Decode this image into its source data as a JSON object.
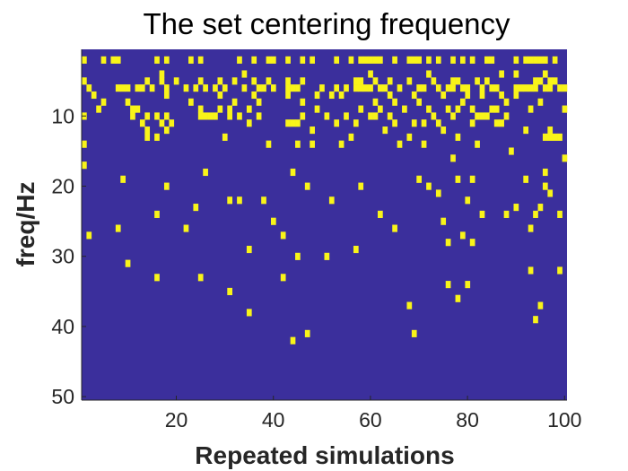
{
  "chart_data": {
    "type": "heatmap",
    "title": "The set centering frequency",
    "xlabel": "Repeated simulations",
    "ylabel": "freq/Hz",
    "x_range": [
      1,
      100
    ],
    "y_range": [
      1,
      50
    ],
    "y_direction": "reverse",
    "x_ticks": [
      20,
      40,
      60,
      80,
      100
    ],
    "y_ticks": [
      10,
      20,
      30,
      40,
      50
    ],
    "colors": {
      "background": "#3b2f9c",
      "cell": "#f9f419",
      "axis": "#262626"
    },
    "cells": [
      [
        1,
        2
      ],
      [
        5,
        2
      ],
      [
        7,
        2
      ],
      [
        8,
        2
      ],
      [
        16,
        2
      ],
      [
        18,
        2
      ],
      [
        23,
        2
      ],
      [
        25,
        2
      ],
      [
        33,
        2
      ],
      [
        36,
        2
      ],
      [
        39,
        2
      ],
      [
        40,
        2
      ],
      [
        43,
        2
      ],
      [
        46,
        2
      ],
      [
        48,
        2
      ],
      [
        53,
        2
      ],
      [
        56,
        2
      ],
      [
        58,
        2
      ],
      [
        59,
        2
      ],
      [
        60,
        2
      ],
      [
        61,
        2
      ],
      [
        62,
        2
      ],
      [
        65,
        2
      ],
      [
        68,
        2
      ],
      [
        69,
        2
      ],
      [
        70,
        2
      ],
      [
        72,
        2
      ],
      [
        74,
        2
      ],
      [
        77,
        2
      ],
      [
        79,
        2
      ],
      [
        81,
        2
      ],
      [
        84,
        2
      ],
      [
        85,
        2
      ],
      [
        90,
        2
      ],
      [
        92,
        2
      ],
      [
        93,
        2
      ],
      [
        94,
        2
      ],
      [
        95,
        2
      ],
      [
        96,
        2
      ],
      [
        98,
        2
      ],
      [
        17,
        4
      ],
      [
        34,
        4
      ],
      [
        60,
        4
      ],
      [
        72,
        4
      ],
      [
        87,
        4
      ],
      [
        90,
        4
      ],
      [
        96,
        4
      ],
      [
        1,
        5
      ],
      [
        14,
        5
      ],
      [
        17,
        5
      ],
      [
        20,
        5
      ],
      [
        25,
        5
      ],
      [
        29,
        5
      ],
      [
        32,
        5
      ],
      [
        36,
        5
      ],
      [
        39,
        5
      ],
      [
        43,
        5
      ],
      [
        46,
        5
      ],
      [
        57,
        5
      ],
      [
        58,
        5
      ],
      [
        61,
        5
      ],
      [
        64,
        5
      ],
      [
        68,
        5
      ],
      [
        73,
        5
      ],
      [
        77,
        5
      ],
      [
        78,
        5
      ],
      [
        82,
        5
      ],
      [
        84,
        5
      ],
      [
        94,
        5
      ],
      [
        95,
        5
      ],
      [
        97,
        5
      ],
      [
        98,
        5
      ],
      [
        2,
        6
      ],
      [
        8,
        6
      ],
      [
        9,
        6
      ],
      [
        10,
        6
      ],
      [
        12,
        6
      ],
      [
        13,
        6
      ],
      [
        15,
        6
      ],
      [
        18,
        6
      ],
      [
        22,
        6
      ],
      [
        24,
        6
      ],
      [
        26,
        6
      ],
      [
        28,
        6
      ],
      [
        30,
        6
      ],
      [
        34,
        6
      ],
      [
        37,
        6
      ],
      [
        38,
        6
      ],
      [
        40,
        6
      ],
      [
        43,
        6
      ],
      [
        44,
        6
      ],
      [
        45,
        6
      ],
      [
        50,
        6
      ],
      [
        53,
        6
      ],
      [
        55,
        6
      ],
      [
        57,
        6
      ],
      [
        58,
        6
      ],
      [
        59,
        6
      ],
      [
        60,
        6
      ],
      [
        62,
        6
      ],
      [
        63,
        6
      ],
      [
        66,
        6
      ],
      [
        70,
        6
      ],
      [
        71,
        6
      ],
      [
        74,
        6
      ],
      [
        76,
        6
      ],
      [
        77,
        6
      ],
      [
        79,
        6
      ],
      [
        80,
        6
      ],
      [
        83,
        6
      ],
      [
        85,
        6
      ],
      [
        86,
        6
      ],
      [
        90,
        6
      ],
      [
        91,
        6
      ],
      [
        92,
        6
      ],
      [
        93,
        6
      ],
      [
        94,
        6
      ],
      [
        96,
        6
      ],
      [
        97,
        6
      ],
      [
        99,
        6
      ],
      [
        100,
        6
      ],
      [
        3,
        7
      ],
      [
        18,
        7
      ],
      [
        29,
        7
      ],
      [
        36,
        7
      ],
      [
        43,
        7
      ],
      [
        49,
        7
      ],
      [
        52,
        7
      ],
      [
        54,
        7
      ],
      [
        64,
        7
      ],
      [
        69,
        7
      ],
      [
        75,
        7
      ],
      [
        80,
        7
      ],
      [
        83,
        7
      ],
      [
        87,
        7
      ],
      [
        90,
        7
      ],
      [
        5,
        8
      ],
      [
        10,
        8
      ],
      [
        23,
        8
      ],
      [
        32,
        8
      ],
      [
        37,
        8
      ],
      [
        46,
        8
      ],
      [
        61,
        8
      ],
      [
        65,
        8
      ],
      [
        70,
        8
      ],
      [
        79,
        8
      ],
      [
        88,
        8
      ],
      [
        95,
        8
      ],
      [
        4,
        9
      ],
      [
        11,
        9
      ],
      [
        12,
        9
      ],
      [
        25,
        9
      ],
      [
        29,
        9
      ],
      [
        31,
        9
      ],
      [
        35,
        9
      ],
      [
        49,
        9
      ],
      [
        58,
        9
      ],
      [
        62,
        9
      ],
      [
        67,
        9
      ],
      [
        72,
        9
      ],
      [
        76,
        9
      ],
      [
        78,
        9
      ],
      [
        81,
        9
      ],
      [
        85,
        9
      ],
      [
        86,
        9
      ],
      [
        93,
        9
      ],
      [
        100,
        9
      ],
      [
        1,
        10
      ],
      [
        11,
        10
      ],
      [
        14,
        10
      ],
      [
        16,
        10
      ],
      [
        18,
        10
      ],
      [
        25,
        10
      ],
      [
        26,
        10
      ],
      [
        27,
        10
      ],
      [
        28,
        10
      ],
      [
        31,
        10
      ],
      [
        33,
        10
      ],
      [
        37,
        10
      ],
      [
        46,
        10
      ],
      [
        51,
        10
      ],
      [
        55,
        10
      ],
      [
        60,
        10
      ],
      [
        61,
        10
      ],
      [
        64,
        10
      ],
      [
        73,
        10
      ],
      [
        77,
        10
      ],
      [
        82,
        10
      ],
      [
        83,
        10
      ],
      [
        84,
        10
      ],
      [
        88,
        10
      ],
      [
        13,
        11
      ],
      [
        17,
        11
      ],
      [
        19,
        11
      ],
      [
        35,
        11
      ],
      [
        43,
        11
      ],
      [
        44,
        11
      ],
      [
        45,
        11
      ],
      [
        53,
        11
      ],
      [
        57,
        11
      ],
      [
        65,
        11
      ],
      [
        69,
        11
      ],
      [
        71,
        11
      ],
      [
        74,
        11
      ],
      [
        81,
        11
      ],
      [
        86,
        11
      ],
      [
        87,
        11
      ],
      [
        14,
        12
      ],
      [
        18,
        12
      ],
      [
        48,
        12
      ],
      [
        63,
        12
      ],
      [
        75,
        12
      ],
      [
        92,
        12
      ],
      [
        97,
        12
      ],
      [
        14,
        13
      ],
      [
        16,
        13
      ],
      [
        30,
        13
      ],
      [
        56,
        13
      ],
      [
        68,
        13
      ],
      [
        78,
        13
      ],
      [
        96,
        13
      ],
      [
        97,
        13
      ],
      [
        98,
        13
      ],
      [
        99,
        13
      ],
      [
        1,
        14
      ],
      [
        39,
        14
      ],
      [
        45,
        14
      ],
      [
        48,
        14
      ],
      [
        54,
        14
      ],
      [
        66,
        14
      ],
      [
        71,
        14
      ],
      [
        82,
        14
      ],
      [
        89,
        15
      ],
      [
        77,
        16
      ],
      [
        100,
        16
      ],
      [
        1,
        17
      ],
      [
        26,
        18
      ],
      [
        44,
        18
      ],
      [
        96,
        18
      ],
      [
        9,
        19
      ],
      [
        70,
        19
      ],
      [
        78,
        19
      ],
      [
        81,
        19
      ],
      [
        92,
        19
      ],
      [
        18,
        20
      ],
      [
        47,
        20
      ],
      [
        58,
        20
      ],
      [
        72,
        20
      ],
      [
        96,
        20
      ],
      [
        74,
        21
      ],
      [
        97,
        21
      ],
      [
        31,
        22
      ],
      [
        33,
        22
      ],
      [
        38,
        22
      ],
      [
        52,
        22
      ],
      [
        80,
        22
      ],
      [
        24,
        23
      ],
      [
        90,
        23
      ],
      [
        95,
        23
      ],
      [
        16,
        24
      ],
      [
        62,
        24
      ],
      [
        83,
        24
      ],
      [
        88,
        24
      ],
      [
        94,
        24
      ],
      [
        99,
        24
      ],
      [
        40,
        25
      ],
      [
        75,
        25
      ],
      [
        8,
        26
      ],
      [
        22,
        26
      ],
      [
        65,
        26
      ],
      [
        93,
        26
      ],
      [
        2,
        27
      ],
      [
        42,
        27
      ],
      [
        79,
        27
      ],
      [
        76,
        28
      ],
      [
        81,
        28
      ],
      [
        35,
        29
      ],
      [
        57,
        29
      ],
      [
        45,
        30
      ],
      [
        51,
        30
      ],
      [
        10,
        31
      ],
      [
        93,
        32
      ],
      [
        99,
        32
      ],
      [
        42,
        33
      ],
      [
        16,
        33
      ],
      [
        25,
        33
      ],
      [
        76,
        34
      ],
      [
        80,
        34
      ],
      [
        31,
        35
      ],
      [
        78,
        36
      ],
      [
        68,
        37
      ],
      [
        95,
        37
      ],
      [
        35,
        38
      ],
      [
        94,
        39
      ],
      [
        47,
        41
      ],
      [
        69,
        41
      ],
      [
        44,
        42
      ]
    ]
  }
}
